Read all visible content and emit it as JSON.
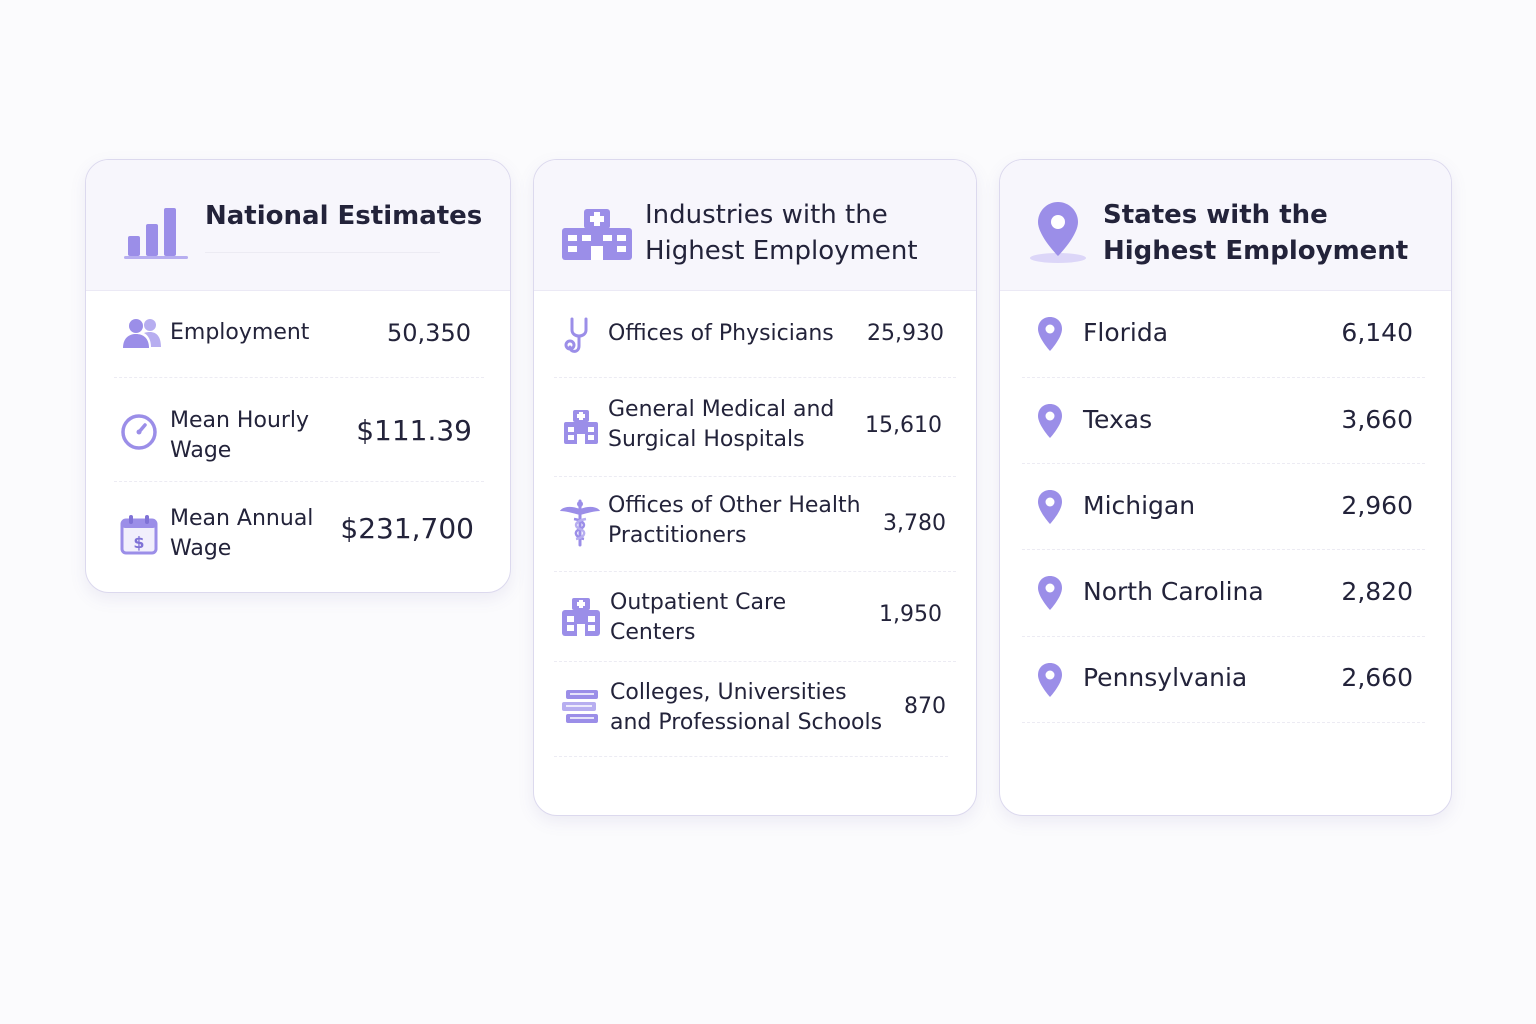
{
  "national": {
    "title": "National Estimates",
    "rows": [
      {
        "label": "Employment",
        "value": "50,350",
        "icon": "people-icon"
      },
      {
        "label": "Mean Hourly\nWage",
        "value": "$111.39",
        "icon": "clock-icon"
      },
      {
        "label": "Mean Annual\nWage",
        "value": "$231,700",
        "icon": "calendar-dollar-icon"
      }
    ]
  },
  "industries": {
    "title": "Industries with the\nHighest Employment",
    "rows": [
      {
        "label": "Offices of Physicians",
        "value": "25,930",
        "icon": "stethoscope-icon"
      },
      {
        "label": "General Medical and\nSurgical Hospitals",
        "value": "15,610",
        "icon": "hospital-icon"
      },
      {
        "label": "Offices of Other Health\nPractitioners",
        "value": "3,780",
        "icon": "caduceus-icon"
      },
      {
        "label": "Outpatient Care\nCenters",
        "value": "1,950",
        "icon": "clinic-icon"
      },
      {
        "label": "Colleges, Universities\nand Professional Schools",
        "value": "870",
        "icon": "books-icon"
      }
    ]
  },
  "states": {
    "title": "States with the\nHighest Employment",
    "rows": [
      {
        "label": "Florida",
        "value": "6,140",
        "icon": "location-pin-icon"
      },
      {
        "label": "Texas",
        "value": "3,660",
        "icon": "location-pin-icon"
      },
      {
        "label": "Michigan",
        "value": "2,960",
        "icon": "location-pin-icon"
      },
      {
        "label": "North Carolina",
        "value": "2,820",
        "icon": "location-pin-icon"
      },
      {
        "label": "Pennsylvania",
        "value": "2,660",
        "icon": "location-pin-icon"
      }
    ]
  },
  "colors": {
    "accent": "#9b8ee8",
    "accent_dark": "#7f72d6",
    "header_bg": "#f7f6fc",
    "card_border": "#dcd9ee",
    "text": "#23233a"
  }
}
